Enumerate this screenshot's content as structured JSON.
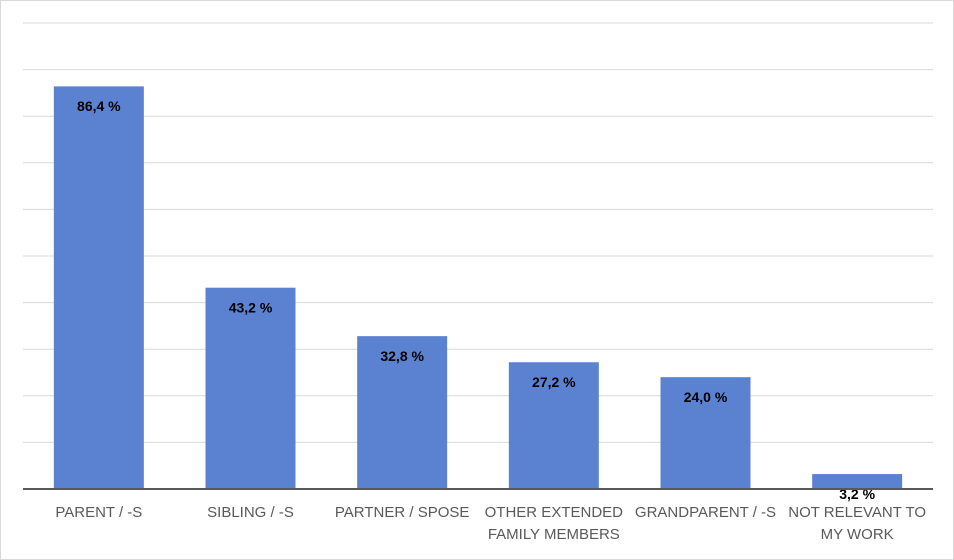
{
  "chart_data": {
    "type": "bar",
    "categories": [
      "PARENT / -S",
      "SIBLING / -S",
      "PARTNER / SPOSE",
      "OTHER EXTENDED FAMILY MEMBERS",
      "GRANDPARENT / -S",
      "NOT RELEVANT TO MY WORK"
    ],
    "values": [
      86.4,
      43.2,
      32.8,
      27.2,
      24.0,
      3.2
    ],
    "value_labels": [
      "86,4 %",
      "43,2 %",
      "32,8 %",
      "27,2 %",
      "24,0 %",
      "3,2 %"
    ],
    "color": "#5b82d0",
    "ylim": [
      0,
      100
    ],
    "yticks": [
      0,
      10,
      20,
      30,
      40,
      50,
      60,
      70,
      80,
      90,
      100
    ],
    "grid": true
  }
}
